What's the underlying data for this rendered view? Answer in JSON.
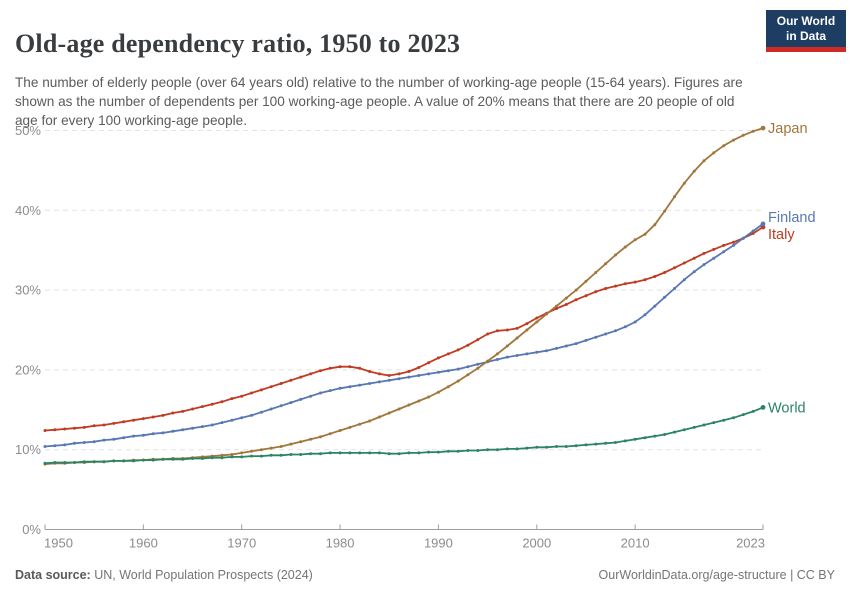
{
  "header": {
    "title": "Old-age dependency ratio, 1950 to 2023",
    "subtitle": "The number of elderly people (over 64 years old) relative to the number of working-age people (15-64 years). Figures are shown as the number of dependents per 100 working-age people. A value of 20% means that there are 20 people of old age for every 100 working-age people.",
    "logo": {
      "line1": "Our World",
      "line2": "in Data",
      "bg_color": "#1d3d63",
      "stripe_color": "#cf2a26"
    }
  },
  "footer": {
    "datasource_label": "Data source:",
    "datasource_value": " UN, World Population Prospects (2024)",
    "link_text": "OurWorldinData.org/age-structure | CC BY"
  },
  "chart_data": {
    "type": "line",
    "title": "Old-age dependency ratio, 1950 to 2023",
    "xlabel": "",
    "ylabel": "",
    "ylim": [
      0,
      50
    ],
    "yticks": [
      0,
      10,
      20,
      30,
      40,
      50
    ],
    "ytick_labels": [
      "0%",
      "10%",
      "20%",
      "30%",
      "40%",
      "50%"
    ],
    "xticks": [
      1950,
      1960,
      1970,
      1980,
      1990,
      2000,
      2010,
      2023
    ],
    "xtick_labels": [
      "1950",
      "1960",
      "1970",
      "1980",
      "1990",
      "2000",
      "2010",
      "2023"
    ],
    "grid": "horizontal-dashed",
    "legend_position": "line-end-labels",
    "axis_color": "#9e9e9e",
    "grid_color": "#e2e2e2",
    "tick_label_color": "#8c8c8c",
    "x": [
      1950,
      1951,
      1952,
      1953,
      1954,
      1955,
      1956,
      1957,
      1958,
      1959,
      1960,
      1961,
      1962,
      1963,
      1964,
      1965,
      1966,
      1967,
      1968,
      1969,
      1970,
      1971,
      1972,
      1973,
      1974,
      1975,
      1976,
      1977,
      1978,
      1979,
      1980,
      1981,
      1982,
      1983,
      1984,
      1985,
      1986,
      1987,
      1988,
      1989,
      1990,
      1991,
      1992,
      1993,
      1994,
      1995,
      1996,
      1997,
      1998,
      1999,
      2000,
      2001,
      2002,
      2003,
      2004,
      2005,
      2006,
      2007,
      2008,
      2009,
      2010,
      2011,
      2012,
      2013,
      2014,
      2015,
      2016,
      2017,
      2018,
      2019,
      2020,
      2021,
      2022,
      2023
    ],
    "series": [
      {
        "name": "Italy",
        "color": "#c03b21",
        "values": [
          12.4,
          12.5,
          12.6,
          12.7,
          12.8,
          13.0,
          13.1,
          13.3,
          13.5,
          13.7,
          13.9,
          14.1,
          14.3,
          14.6,
          14.8,
          15.1,
          15.4,
          15.7,
          16.0,
          16.4,
          16.7,
          17.1,
          17.5,
          17.9,
          18.3,
          18.7,
          19.1,
          19.5,
          19.9,
          20.2,
          20.4,
          20.4,
          20.2,
          19.8,
          19.5,
          19.3,
          19.5,
          19.8,
          20.3,
          20.9,
          21.5,
          22.0,
          22.5,
          23.1,
          23.8,
          24.5,
          24.9,
          25.0,
          25.2,
          25.8,
          26.5,
          27.1,
          27.7,
          28.2,
          28.8,
          29.3,
          29.8,
          30.2,
          30.5,
          30.8,
          31.0,
          31.3,
          31.7,
          32.2,
          32.8,
          33.4,
          34.0,
          34.6,
          35.1,
          35.6,
          36.0,
          36.5,
          37.1,
          37.9
        ]
      },
      {
        "name": "Finland",
        "color": "#5878b3",
        "values": [
          10.4,
          10.5,
          10.6,
          10.8,
          10.9,
          11.0,
          11.2,
          11.3,
          11.5,
          11.7,
          11.8,
          12.0,
          12.1,
          12.3,
          12.5,
          12.7,
          12.9,
          13.1,
          13.4,
          13.7,
          14.0,
          14.3,
          14.7,
          15.1,
          15.5,
          15.9,
          16.3,
          16.7,
          17.1,
          17.4,
          17.7,
          17.9,
          18.1,
          18.3,
          18.5,
          18.7,
          18.9,
          19.1,
          19.3,
          19.5,
          19.7,
          19.9,
          20.1,
          20.4,
          20.7,
          21.0,
          21.3,
          21.6,
          21.8,
          22.0,
          22.2,
          22.4,
          22.7,
          23.0,
          23.3,
          23.7,
          24.1,
          24.5,
          24.9,
          25.4,
          26.0,
          26.9,
          28.0,
          29.1,
          30.2,
          31.3,
          32.3,
          33.2,
          34.0,
          34.8,
          35.6,
          36.5,
          37.4,
          38.3
        ]
      },
      {
        "name": "Japan",
        "color": "#a1763b",
        "values": [
          8.2,
          8.3,
          8.3,
          8.4,
          8.4,
          8.5,
          8.5,
          8.6,
          8.6,
          8.7,
          8.7,
          8.8,
          8.8,
          8.9,
          8.9,
          9.0,
          9.1,
          9.2,
          9.3,
          9.4,
          9.6,
          9.8,
          10.0,
          10.2,
          10.4,
          10.7,
          11.0,
          11.3,
          11.6,
          12.0,
          12.4,
          12.8,
          13.2,
          13.6,
          14.1,
          14.6,
          15.1,
          15.6,
          16.1,
          16.6,
          17.2,
          17.9,
          18.6,
          19.4,
          20.2,
          21.1,
          22.0,
          23.0,
          24.0,
          25.0,
          26.0,
          27.0,
          28.0,
          29.0,
          30.0,
          31.1,
          32.2,
          33.3,
          34.4,
          35.4,
          36.3,
          37.0,
          38.2,
          39.9,
          41.7,
          43.4,
          44.9,
          46.2,
          47.2,
          48.1,
          48.8,
          49.4,
          49.9,
          50.3
        ]
      },
      {
        "name": "World",
        "color": "#2c8465",
        "values": [
          8.3,
          8.4,
          8.4,
          8.4,
          8.5,
          8.5,
          8.5,
          8.6,
          8.6,
          8.6,
          8.7,
          8.7,
          8.8,
          8.8,
          8.8,
          8.9,
          8.9,
          9.0,
          9.0,
          9.1,
          9.1,
          9.2,
          9.2,
          9.3,
          9.3,
          9.4,
          9.4,
          9.5,
          9.5,
          9.6,
          9.6,
          9.6,
          9.6,
          9.6,
          9.6,
          9.5,
          9.5,
          9.6,
          9.6,
          9.7,
          9.7,
          9.8,
          9.8,
          9.9,
          9.9,
          10.0,
          10.0,
          10.1,
          10.1,
          10.2,
          10.3,
          10.3,
          10.4,
          10.4,
          10.5,
          10.6,
          10.7,
          10.8,
          10.9,
          11.1,
          11.3,
          11.5,
          11.7,
          11.9,
          12.2,
          12.5,
          12.8,
          13.1,
          13.4,
          13.7,
          14.0,
          14.4,
          14.8,
          15.3
        ]
      }
    ]
  }
}
